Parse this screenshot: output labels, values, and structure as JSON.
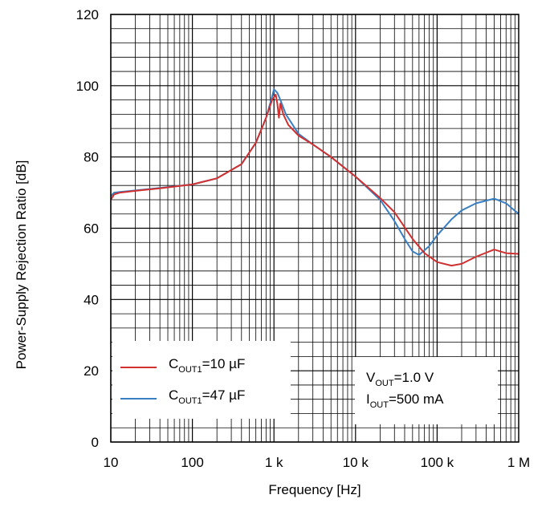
{
  "chart_data": {
    "type": "line",
    "xlabel": "Frequency [Hz]",
    "ylabel": "Power-Supply Rejection Ratio [dB]",
    "xscale": "log",
    "xlim": [
      10,
      1000000
    ],
    "ylim": [
      0,
      120
    ],
    "grid": true,
    "x_ticks": [
      {
        "value": 10,
        "label": "10"
      },
      {
        "value": 100,
        "label": "100"
      },
      {
        "value": 1000,
        "label": "1 k"
      },
      {
        "value": 10000,
        "label": "10 k"
      },
      {
        "value": 100000,
        "label": "100 k"
      },
      {
        "value": 1000000,
        "label": "1 M"
      }
    ],
    "y_ticks": [
      {
        "value": 0,
        "label": "0"
      },
      {
        "value": 20,
        "label": "20"
      },
      {
        "value": 40,
        "label": "40"
      },
      {
        "value": 60,
        "label": "60"
      },
      {
        "value": 80,
        "label": "80"
      },
      {
        "value": 100,
        "label": "100"
      },
      {
        "value": 120,
        "label": "120"
      }
    ],
    "legend_placement": "bottom-left",
    "series": [
      {
        "name": "COUT1=10 µF",
        "label_main": "C",
        "label_sub": "OUT1",
        "label_tail": "=10 µF",
        "color": "#d03030",
        "points": [
          [
            10,
            68
          ],
          [
            11,
            69.5
          ],
          [
            13,
            70
          ],
          [
            20,
            70.5
          ],
          [
            40,
            71.2
          ],
          [
            100,
            72.3
          ],
          [
            200,
            74
          ],
          [
            400,
            78
          ],
          [
            600,
            84
          ],
          [
            800,
            91
          ],
          [
            950,
            96
          ],
          [
            1050,
            97.5
          ],
          [
            1100,
            95
          ],
          [
            1150,
            91
          ],
          [
            1200,
            95
          ],
          [
            1300,
            92
          ],
          [
            1500,
            89
          ],
          [
            2000,
            86
          ],
          [
            3000,
            83.5
          ],
          [
            5000,
            80
          ],
          [
            10000,
            74.5
          ],
          [
            20000,
            68.5
          ],
          [
            30000,
            64.5
          ],
          [
            50000,
            57
          ],
          [
            70000,
            53
          ],
          [
            100000,
            50.5
          ],
          [
            150000,
            49.5
          ],
          [
            200000,
            50
          ],
          [
            300000,
            52
          ],
          [
            500000,
            54
          ],
          [
            700000,
            53
          ],
          [
            1000000,
            52.8
          ]
        ]
      },
      {
        "name": "COUT1=47 µF",
        "label_main": "C",
        "label_sub": "OUT1",
        "label_tail": "=47 µF",
        "color": "#3a7fc2",
        "points": [
          [
            10,
            69
          ],
          [
            11,
            70
          ],
          [
            13,
            70.2
          ],
          [
            20,
            70.6
          ],
          [
            40,
            71.3
          ],
          [
            100,
            72.3
          ],
          [
            200,
            74
          ],
          [
            400,
            78
          ],
          [
            600,
            84
          ],
          [
            800,
            91
          ],
          [
            950,
            97
          ],
          [
            1000,
            99
          ],
          [
            1100,
            98
          ],
          [
            1200,
            96
          ],
          [
            1400,
            92
          ],
          [
            2000,
            86.5
          ],
          [
            3000,
            83.5
          ],
          [
            5000,
            80
          ],
          [
            10000,
            74.5
          ],
          [
            20000,
            68
          ],
          [
            30000,
            62
          ],
          [
            40000,
            57
          ],
          [
            50000,
            53.5
          ],
          [
            60000,
            52.5
          ],
          [
            80000,
            55
          ],
          [
            100000,
            58
          ],
          [
            150000,
            62.5
          ],
          [
            200000,
            65
          ],
          [
            300000,
            67
          ],
          [
            500000,
            68.3
          ],
          [
            700000,
            67
          ],
          [
            1000000,
            64
          ]
        ]
      }
    ],
    "annotation": {
      "vout_main": "V",
      "vout_sub": "OUT",
      "vout_tail": "=1.0 V",
      "iout_main": "I",
      "iout_sub": "OUT",
      "iout_tail": "=500 mA"
    }
  }
}
